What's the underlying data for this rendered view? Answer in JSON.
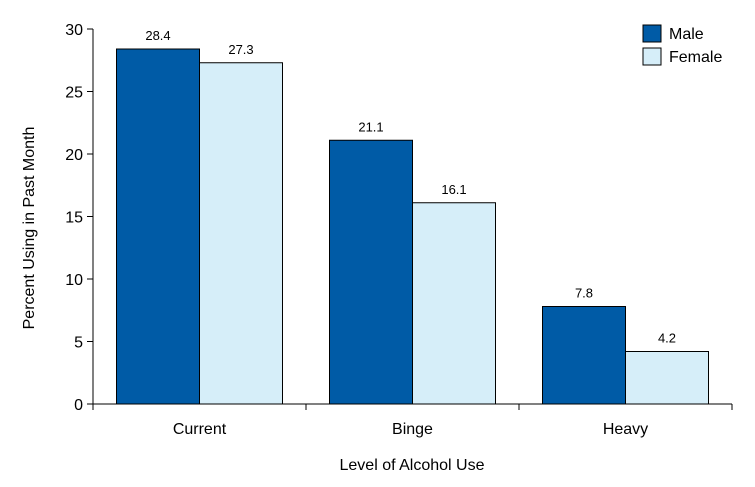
{
  "chart_data": {
    "type": "bar",
    "categories": [
      "Current",
      "Binge",
      "Heavy"
    ],
    "series": [
      {
        "name": "Male",
        "values": [
          28.4,
          21.1,
          7.8
        ],
        "color": "#005ba6"
      },
      {
        "name": "Female",
        "values": [
          27.3,
          16.1,
          4.2
        ],
        "color": "#d6eef9"
      }
    ],
    "xlabel": "Level of Alcohol Use",
    "ylabel": "Percent Using in Past Month",
    "ylim": [
      0,
      30
    ],
    "yticks": [
      0,
      5,
      10,
      15,
      20,
      25,
      30
    ],
    "grid": false,
    "legend_position": "top-right"
  }
}
